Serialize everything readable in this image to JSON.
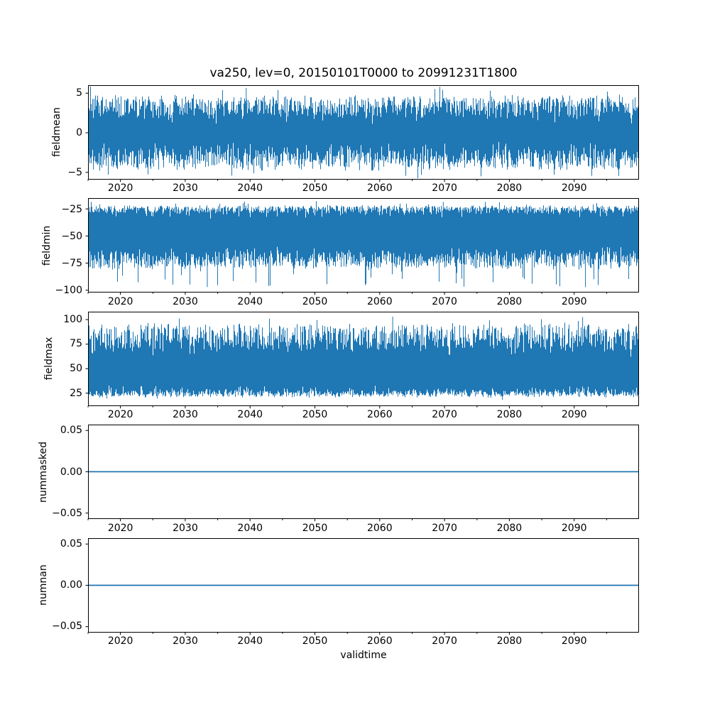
{
  "colors": {
    "background": "#ffffff",
    "line": "#1f77b4",
    "axes": "#000000",
    "text": "#000000"
  },
  "chart_data": {
    "type": "line",
    "title": "va250, lev=0, 20150101T0000 to 20991231T1800",
    "xlabel": "validtime",
    "grid": false,
    "legend_position": "none",
    "x_range": [
      2015,
      2100
    ],
    "x_ticks": [
      {
        "value": 2020,
        "label": "2020"
      },
      {
        "value": 2030,
        "label": "2030"
      },
      {
        "value": 2040,
        "label": "2040"
      },
      {
        "value": 2050,
        "label": "2050"
      },
      {
        "value": 2060,
        "label": "2060"
      },
      {
        "value": 2070,
        "label": "2070"
      },
      {
        "value": 2080,
        "label": "2080"
      },
      {
        "value": 2090,
        "label": "2090"
      }
    ],
    "x_minor_ticks": [
      2015,
      2025,
      2035,
      2045,
      2055,
      2065,
      2075,
      2085,
      2095
    ],
    "subplots": [
      {
        "name": "fieldmean",
        "ylabel": "fieldmean",
        "y_lim": [
          -5.9,
          6.0
        ],
        "y_ticks": [
          {
            "value": 5,
            "label": "5"
          },
          {
            "value": 0,
            "label": "0"
          },
          {
            "value": -5,
            "label": "−5"
          }
        ],
        "series": {
          "kind": "noise_band",
          "representation": "per-column min/max envelope of dense 6-hourly noise",
          "center": 0,
          "seasonal_amplitude": 0.25,
          "hi": {
            "core": [
              1.9,
              4.6
            ],
            "exp": 0.85,
            "extreme": 5.65,
            "spike_prob": 0.02,
            "notch_to": 1.3,
            "notch_prob": 0.04
          },
          "lo": {
            "core": [
              -4.6,
              -1.9
            ],
            "exp": 0.85,
            "extreme": -5.6,
            "spike_prob": 0.02,
            "notch_to": -1.3,
            "notch_prob": 0.04
          },
          "notable_spikes": [
            {
              "x": 2039.4,
              "value": 5.65
            }
          ]
        }
      },
      {
        "name": "fieldmin",
        "ylabel": "fieldmin",
        "y_lim": [
          -102,
          -15
        ],
        "y_ticks": [
          {
            "value": -25,
            "label": "−25"
          },
          {
            "value": -50,
            "label": "−50"
          },
          {
            "value": -75,
            "label": "−75"
          },
          {
            "value": -100,
            "label": "−100"
          }
        ],
        "series": {
          "kind": "noise_band",
          "representation": "per-column min/max envelope of dense 6-hourly noise",
          "center": -50,
          "seasonal_amplitude": 1.0,
          "hi": {
            "core": [
              -30,
              -22.5
            ],
            "exp": 0.6,
            "extreme": -18.5,
            "spike_prob": 0.03,
            "notch_to": -33,
            "notch_prob": 0.04
          },
          "lo": {
            "core": [
              -80,
              -64
            ],
            "exp": 0.85,
            "extreme": -97,
            "spike_prob": 0.05,
            "notch_to": -60,
            "notch_prob": 0.03
          },
          "notable_spikes": [
            {
              "x": 2033.4,
              "value": -97
            },
            {
              "x": 2069.8,
              "value": -18.5
            }
          ]
        }
      },
      {
        "name": "fieldmax",
        "ylabel": "fieldmax",
        "y_lim": [
          12,
          108
        ],
        "y_ticks": [
          {
            "value": 100,
            "label": "100"
          },
          {
            "value": 75,
            "label": "75"
          },
          {
            "value": 50,
            "label": "50"
          },
          {
            "value": 25,
            "label": "25"
          }
        ],
        "series": {
          "kind": "noise_band",
          "representation": "per-column min/max envelope of dense 6-hourly noise",
          "center": 55,
          "seasonal_amplitude": 1.5,
          "hi": {
            "core": [
              68,
              95
            ],
            "exp": 0.85,
            "extreme": 103,
            "spike_prob": 0.02,
            "notch_to": 63,
            "notch_prob": 0.03
          },
          "lo": {
            "core": [
              22,
              29
            ],
            "exp": 0.6,
            "extreme": 19,
            "spike_prob": 0.03,
            "notch_to": 31.5,
            "notch_prob": 0.04
          },
          "notable_spikes": [
            {
              "x": 2062.0,
              "value": 103
            },
            {
              "x": 2091.3,
              "value": 102.5
            }
          ]
        }
      },
      {
        "name": "nummasked",
        "ylabel": "nummasked",
        "y_lim": [
          -0.057,
          0.057
        ],
        "y_ticks": [
          {
            "value": 0.05,
            "label": "0.05"
          },
          {
            "value": 0.0,
            "label": "0.00"
          },
          {
            "value": -0.05,
            "label": "−0.05"
          }
        ],
        "series": {
          "kind": "constant",
          "value": 0
        }
      },
      {
        "name": "numnan",
        "ylabel": "numnan",
        "y_lim": [
          -0.057,
          0.057
        ],
        "y_ticks": [
          {
            "value": 0.05,
            "label": "0.05"
          },
          {
            "value": 0.0,
            "label": "0.00"
          },
          {
            "value": -0.05,
            "label": "−0.05"
          }
        ],
        "series": {
          "kind": "constant",
          "value": 0
        }
      }
    ]
  }
}
